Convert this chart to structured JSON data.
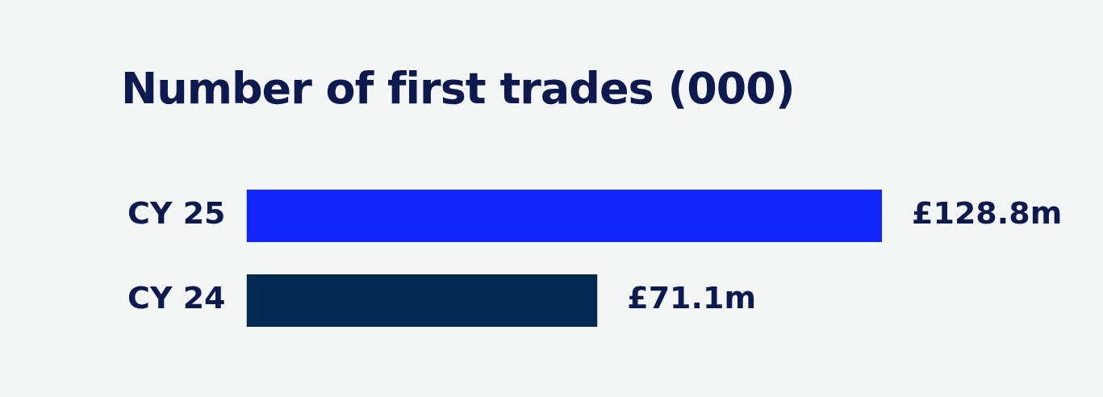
{
  "chart_data": {
    "type": "bar",
    "orientation": "horizontal",
    "title": "Number of first trades (000)",
    "categories": [
      "CY 25",
      "CY 24"
    ],
    "values": [
      128.8,
      71.1
    ],
    "colors": [
      "#1226fb",
      "#002850"
    ],
    "value_labels": [
      "£128.8m",
      "£71.1m"
    ]
  }
}
